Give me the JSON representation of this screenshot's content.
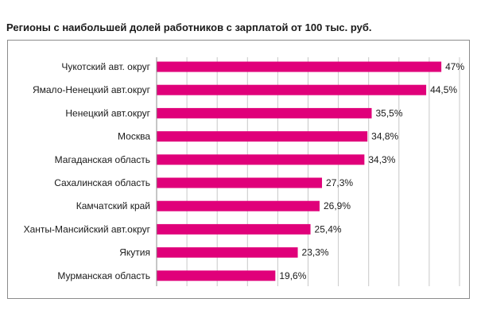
{
  "colors": {
    "bar": "#e0007a",
    "grid": "#c8c8c8",
    "axis": "#8c8c8c"
  },
  "chart_data": {
    "type": "bar",
    "orientation": "horizontal",
    "title": "Регионы с наибольшей долей работников с зарплатой от 100 тыс. руб.",
    "xlabel": "",
    "ylabel": "",
    "xlim": [
      0,
      50
    ],
    "grid": true,
    "categories": [
      "Чукотский авт. округ",
      "Ямало-Ненецкий авт.округ",
      "Ненецкий авт.округ",
      "Москва",
      "Магаданская область",
      "Сахалинская область",
      "Камчатский край",
      "Ханты-Мансийский авт.округ",
      "Якутия",
      "Мурманская область"
    ],
    "values": [
      47,
      44.5,
      35.5,
      34.8,
      34.3,
      27.3,
      26.9,
      25.4,
      23.3,
      19.6
    ],
    "value_labels": [
      "47%",
      "44,5%",
      "35,5%",
      "34,8%",
      "34,3%",
      "27,3%",
      "26,9%",
      "25,4%",
      "23,3%",
      "19,6%"
    ]
  }
}
